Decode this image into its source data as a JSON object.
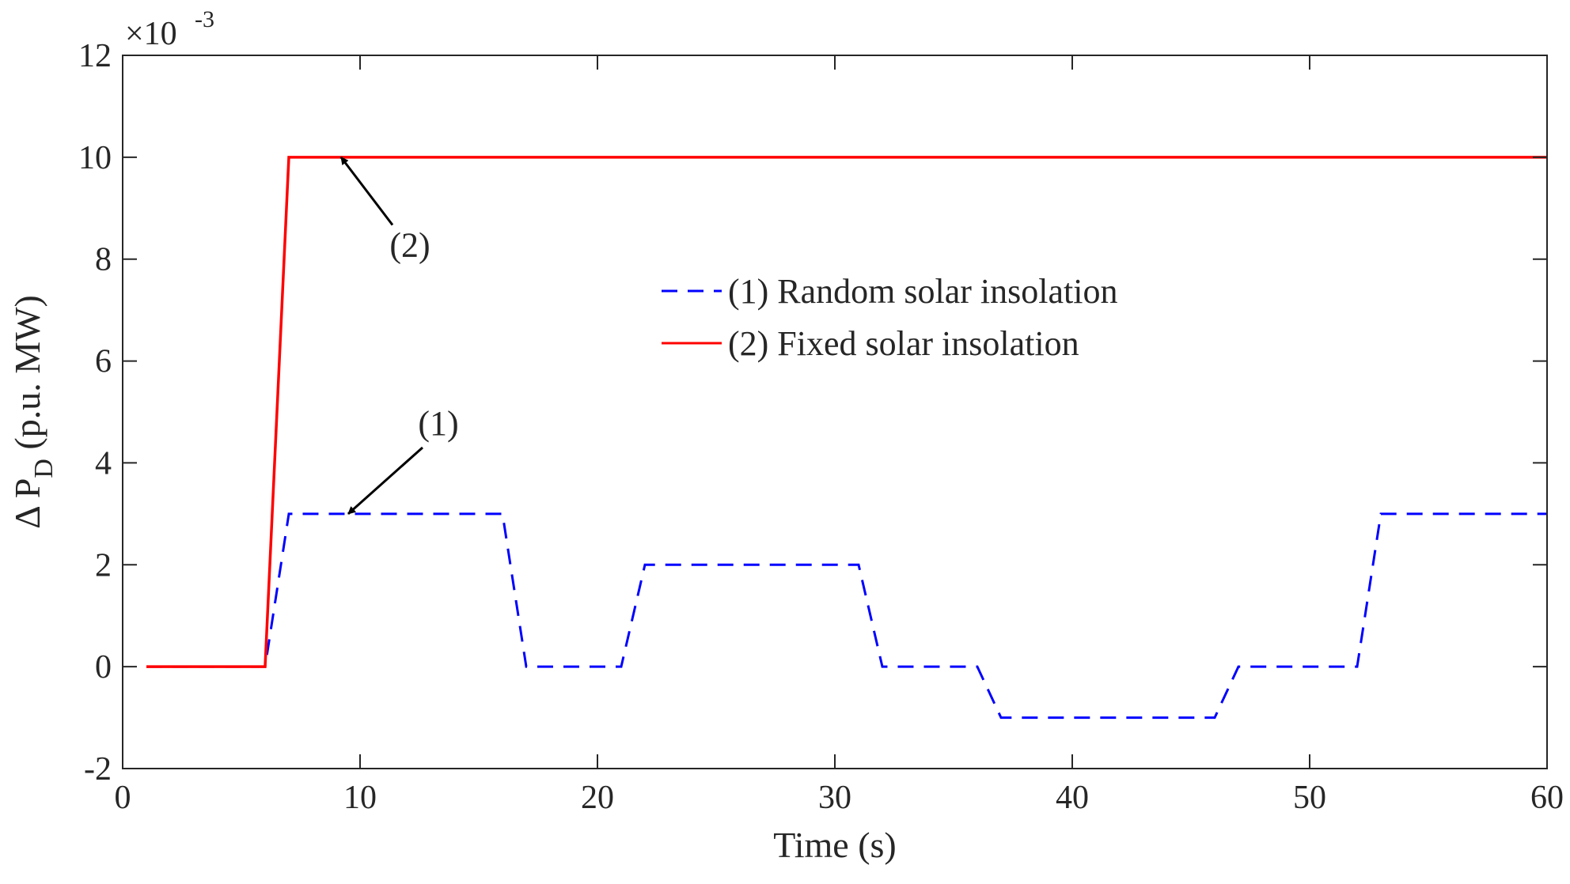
{
  "chart_data": {
    "type": "line",
    "title": "",
    "xlabel": "Time (s)",
    "ylabel_prefix": "Δ P",
    "ylabel_subscript": "D",
    "ylabel_units": " (p.u. MW)",
    "y_exponent_label": "×10",
    "y_exponent_power": "-3",
    "xlim": [
      0,
      60
    ],
    "ylim": [
      -2,
      12
    ],
    "xticks": [
      0,
      10,
      20,
      30,
      40,
      50,
      60
    ],
    "yticks": [
      -2,
      0,
      2,
      4,
      6,
      8,
      10,
      12
    ],
    "grid": false,
    "legend_position": "center-right",
    "series": [
      {
        "name": "(1) Random solar insolation",
        "color": "#0000ff",
        "line_style": "dashed",
        "x": [
          1,
          6,
          7,
          16,
          17,
          21,
          22,
          31,
          32,
          36,
          37,
          46,
          47,
          52,
          53,
          60
        ],
        "y": [
          0,
          0,
          3,
          3,
          0,
          0,
          2,
          2,
          0,
          0,
          -1,
          -1,
          0,
          0,
          3,
          3
        ]
      },
      {
        "name": "(2) Fixed solar insolation",
        "color": "#ff0000",
        "line_style": "solid",
        "x": [
          1,
          6,
          7,
          60
        ],
        "y": [
          0,
          0,
          10,
          10
        ]
      }
    ],
    "annotations": [
      {
        "text": "(1)",
        "arrow_to": [
          9.5,
          3
        ],
        "label_at": [
          13.3,
          4.55
        ]
      },
      {
        "text": "(2)",
        "arrow_to": [
          9.2,
          10
        ],
        "label_at": [
          12.1,
          8.05
        ]
      }
    ]
  }
}
